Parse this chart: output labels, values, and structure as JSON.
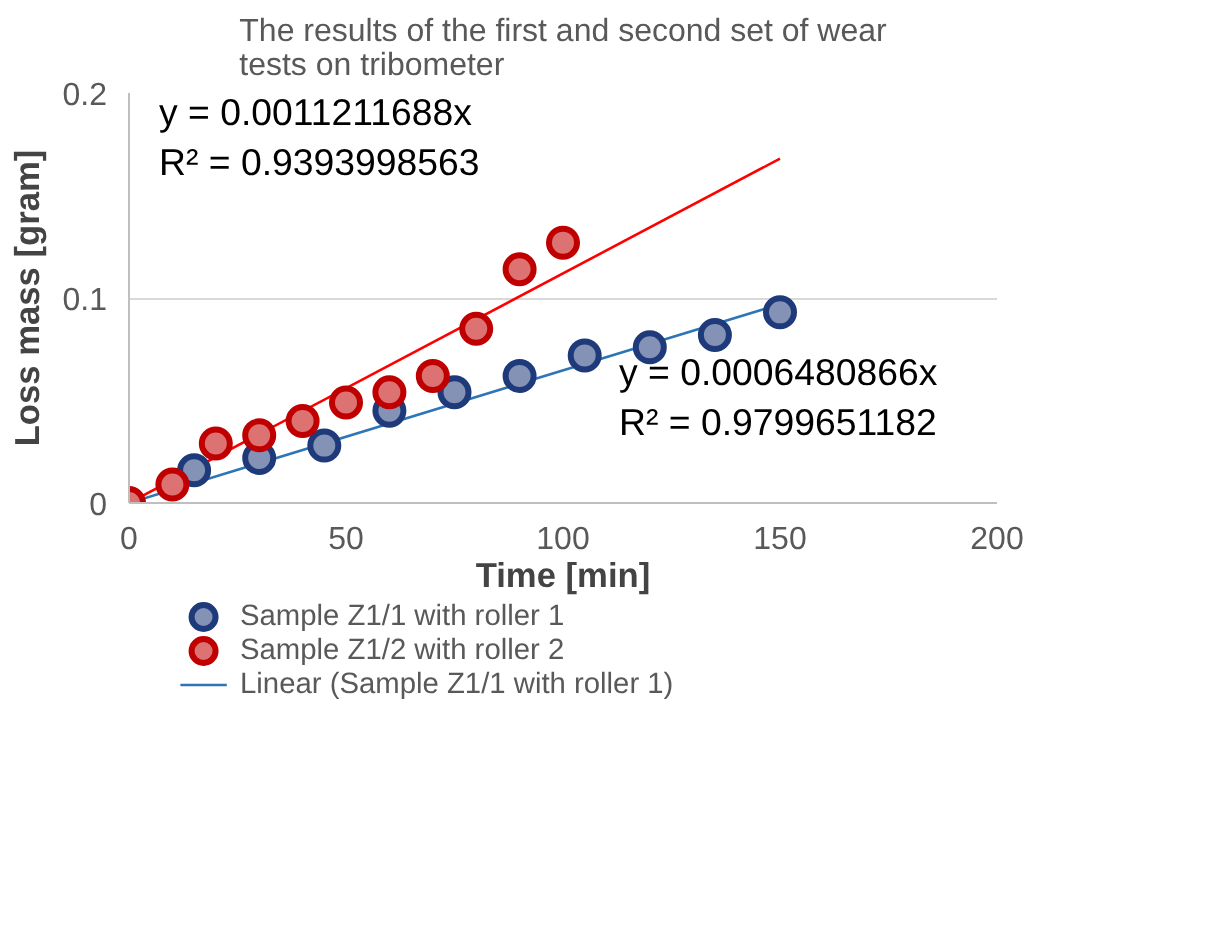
{
  "chart_data": {
    "type": "scatter",
    "title": "The results of the first and second set of wear tests on tribometer",
    "xlabel": "Time [min]",
    "ylabel": "Loss mass [gram]",
    "xlim": [
      0,
      200
    ],
    "xticks": [
      0,
      50,
      100,
      150,
      200
    ],
    "ylim": [
      0,
      0.2
    ],
    "yticks": [
      0,
      0.1,
      0.2
    ],
    "grid": "y",
    "legend": "bottom",
    "series": [
      {
        "name": "Sample Z1/1 with roller 1",
        "color": "#1f3a7a",
        "marker": "circle",
        "x": [
          15,
          30,
          45,
          60,
          75,
          90,
          105,
          120,
          135,
          150
        ],
        "values": [
          0.016,
          0.022,
          0.028,
          0.045,
          0.054,
          0.062,
          0.072,
          0.076,
          0.082,
          0.093
        ]
      },
      {
        "name": "Sample Z1/2 with roller 2",
        "color": "#c00000",
        "marker": "circle",
        "x": [
          0,
          10,
          20,
          30,
          40,
          50,
          60,
          70,
          80,
          90,
          100
        ],
        "values": [
          0,
          0.009,
          0.029,
          0.033,
          0.04,
          0.049,
          0.054,
          0.062,
          0.085,
          0.114,
          0.127
        ]
      },
      {
        "name": "Linear (Sample Z1/1 with roller 1)",
        "type": "line",
        "color": "#2e75b6",
        "x": [
          0,
          150
        ],
        "values": [
          0,
          0.097
        ]
      },
      {
        "type": "line",
        "color": "#ff0000",
        "x": [
          0,
          150
        ],
        "values": [
          0,
          0.168
        ]
      }
    ],
    "annotations": [
      "y = 0.0011211688x",
      "R² = 0.9393998563",
      "y = 0.0006480866x",
      "R² = 0.9799651182"
    ]
  }
}
